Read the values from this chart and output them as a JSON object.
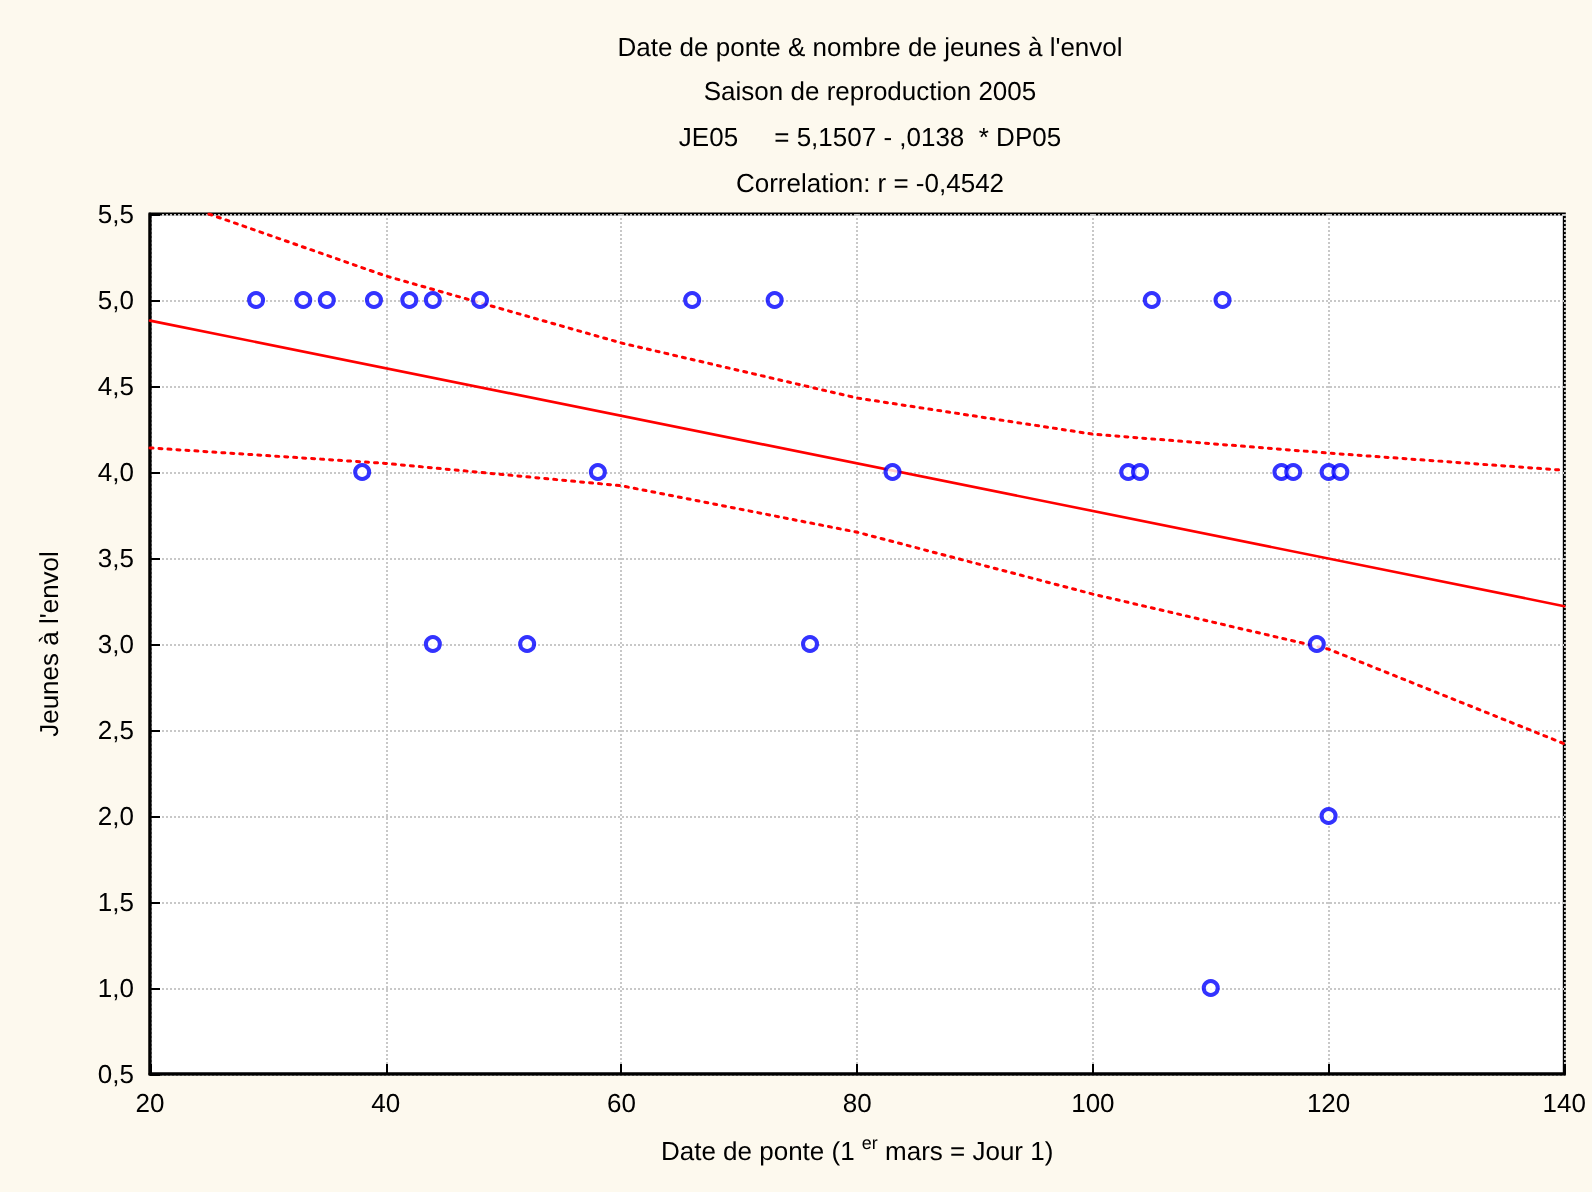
{
  "chart_data": {
    "type": "scatter",
    "title": "Date de ponte & nombre de jeunes à l'envol",
    "subtitle": "Saison de reproduction 2005",
    "annotations": [
      "JE05     = 5,1507 - ,0138  * DP05",
      "Correlation: r = -0,4542"
    ],
    "xlabel": "Date de ponte (1 $^{er}$ mars = Jour 1)",
    "ylabel": "Jeunes à l'envol",
    "xlim": [
      20,
      140
    ],
    "xticks": [
      20,
      40,
      60,
      80,
      100,
      120,
      140
    ],
    "ylim": [
      0.5,
      5.5
    ],
    "yticks": [
      {
        "value": 0.5,
        "label": "0,5"
      },
      {
        "value": 1,
        "label": "1,0"
      },
      {
        "value": 1.5,
        "label": "1,5"
      },
      {
        "value": 2,
        "label": "2,0"
      },
      {
        "value": 2.5,
        "label": "2,5"
      },
      {
        "value": 3,
        "label": "3,0"
      },
      {
        "value": 3.5,
        "label": "3,5"
      },
      {
        "value": 4,
        "label": "4,0"
      },
      {
        "value": 4.5,
        "label": "4,5"
      },
      {
        "value": 5,
        "label": "5,0"
      },
      {
        "value": 5.5,
        "label": "5,5"
      }
    ],
    "grid": true,
    "series": [
      {
        "color": "#0000ff",
        "marker": "circle",
        "x": [
          29,
          33,
          35,
          39,
          42,
          44,
          48,
          66,
          73,
          105,
          111,
          38,
          58,
          83,
          103,
          104,
          116,
          117,
          120,
          121,
          44,
          52,
          76,
          119,
          120,
          110
        ],
        "values": [
          5,
          5,
          5,
          5,
          5,
          5,
          5,
          5,
          5,
          5,
          5,
          4,
          4,
          4,
          4,
          4,
          4,
          4,
          4,
          4,
          3,
          3,
          3,
          3,
          2,
          1
        ]
      },
      {
        "type": "line",
        "color": "#ff0000",
        "marker": "none",
        "line_style": "solid",
        "x": [
          20,
          140
        ],
        "values": [
          4.88,
          3.22
        ]
      },
      {
        "type": "line",
        "color": "#ff0000",
        "marker": "none",
        "line_style": "dotted",
        "x": [
          25,
          40,
          60,
          80,
          100,
          120,
          140
        ],
        "values": [
          5.5,
          5.14,
          4.75,
          4.43,
          4.22,
          4.11,
          4.01
        ]
      },
      {
        "type": "line",
        "color": "#ff0000",
        "marker": "none",
        "line_style": "dotted",
        "x": [
          20,
          40,
          60,
          80,
          100,
          120,
          140
        ],
        "values": [
          4.14,
          4.05,
          3.92,
          3.65,
          3.29,
          2.97,
          2.42
        ]
      }
    ]
  }
}
